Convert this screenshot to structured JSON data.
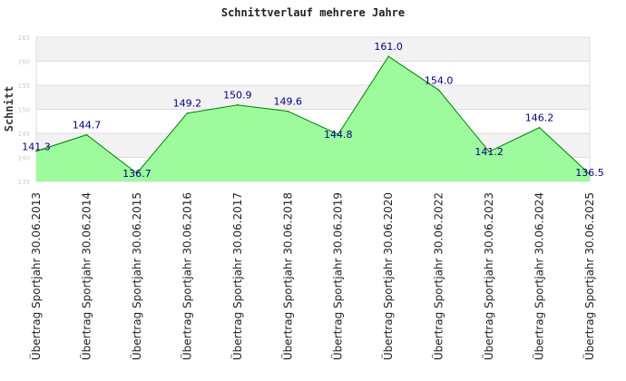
{
  "chart_data": {
    "type": "area",
    "title": "Schnittverlauf mehrere Jahre",
    "xlabel": "",
    "ylabel": "Schnitt",
    "ylim": [
      135,
      165
    ],
    "yticks": [
      "135",
      "140",
      "145",
      "150",
      "155",
      "160",
      "165"
    ],
    "categories": [
      "Übertrag Sportjahr 30.06.2013",
      "Übertrag Sportjahr 30.06.2014",
      "Übertrag Sportjahr 30.06.2015",
      "Übertrag Sportjahr 30.06.2016",
      "Übertrag Sportjahr 30.06.2017",
      "Übertrag Sportjahr 30.06.2018",
      "Übertrag Sportjahr 30.06.2019",
      "Übertrag Sportjahr 30.06.2020",
      "Übertrag Sportjahr 30.06.2022",
      "Übertrag Sportjahr 30.06.2023",
      "Übertrag Sportjahr 30.06.2024",
      "Übertrag Sportjahr 30.06.2025"
    ],
    "values": [
      141.3,
      144.7,
      136.7,
      149.2,
      150.9,
      149.6,
      144.8,
      161.0,
      154.0,
      141.2,
      146.2,
      136.5
    ],
    "data_labels": [
      "141.3",
      "144.7",
      "136.7",
      "149.2",
      "150.9",
      "149.6",
      "144.8",
      "161.0",
      "154.0",
      "141.2",
      "146.2",
      "136.5"
    ],
    "grid": true,
    "colors": {
      "fill": "#98fb98",
      "line": "#008000",
      "label": "#000080",
      "band": "#f2f2f2",
      "grid": "#dddddd"
    }
  }
}
